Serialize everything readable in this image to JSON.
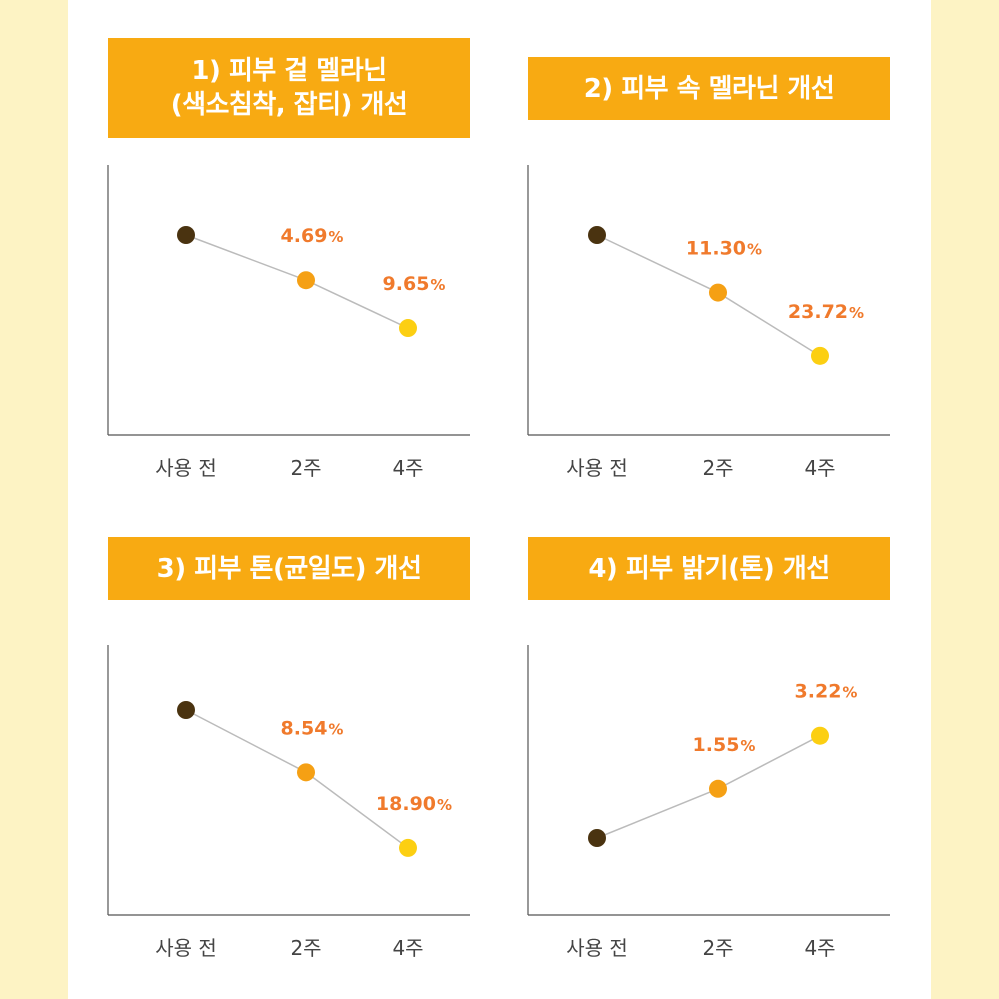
{
  "colors": {
    "background": "#fdf3c4",
    "banner": "#f8aa12",
    "axis": "#555555",
    "line": "#bbbbbb",
    "value_text": "#f07a2c",
    "point_before": "#4a3310",
    "point_2w": "#f5a014",
    "point_4w": "#fccf12"
  },
  "chart_data": [
    {
      "type": "line",
      "title_lines": [
        "1) 피부 겉 멜라닌",
        "(색소침착, 잡티) 개선"
      ],
      "categories": [
        "사용 전",
        "2주",
        "4주"
      ],
      "values": [
        0,
        -4.69,
        -9.65
      ],
      "value_labels": [
        "",
        "4.69",
        "9.65"
      ],
      "unit": "%",
      "ylim": [
        -19,
        9
      ]
    },
    {
      "type": "line",
      "title_lines": [
        "2) 피부 속 멜라닌 개선"
      ],
      "categories": [
        "사용 전",
        "2주",
        "4주"
      ],
      "values": [
        0,
        -11.3,
        -23.72
      ],
      "value_labels": [
        "",
        "11.30",
        "23.72"
      ],
      "unit": "%",
      "ylim": [
        -38,
        15
      ]
    },
    {
      "type": "line",
      "title_lines": [
        "3) 피부 톤(균일도) 개선"
      ],
      "categories": [
        "사용 전",
        "2주",
        "4주"
      ],
      "values": [
        0,
        -8.54,
        -18.9
      ],
      "value_labels": [
        "",
        "8.54",
        "18.90"
      ],
      "unit": "%",
      "ylim": [
        -28,
        9
      ]
    },
    {
      "type": "line",
      "title_lines": [
        "4) 피부 밝기(톤) 개선"
      ],
      "categories": [
        "사용 전",
        "2주",
        "4주"
      ],
      "values": [
        0,
        1.55,
        3.22
      ],
      "value_labels": [
        "",
        "1.55",
        "3.22"
      ],
      "unit": "%",
      "ylim": [
        -2.6,
        5.9
      ]
    }
  ]
}
